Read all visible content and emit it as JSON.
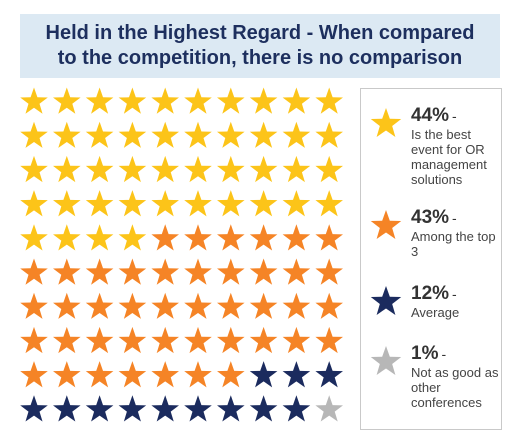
{
  "title": "Held in the Highest Regard - When compared to the competition, there is no comparison",
  "colors": {
    "band": "#dce9f3",
    "title_text": "#1d2f5e",
    "best": "#fcc419",
    "top3": "#f58426",
    "average": "#1b2b5e",
    "not_as_good": "#b7b7b7"
  },
  "legend": [
    {
      "pct": "44%",
      "dash": "-",
      "desc": "Is the best event for OR management solutions"
    },
    {
      "pct": "43%",
      "dash": "-",
      "desc": "Among the top 3"
    },
    {
      "pct": "12%",
      "dash": "-",
      "desc": "Average"
    },
    {
      "pct": "1%",
      "dash": "-",
      "desc": "Not as good as other conferences"
    }
  ],
  "chart_data": {
    "type": "pictograph",
    "title": "Held in the Highest Regard - When compared to the competition, there is no comparison",
    "unit_icon": "star",
    "columns": 10,
    "categories": [
      "Is the best event for OR management solutions",
      "Among the top 3",
      "Average",
      "Not as good as other conferences"
    ],
    "values": [
      44,
      43,
      12,
      1
    ],
    "value_unit": "%"
  }
}
